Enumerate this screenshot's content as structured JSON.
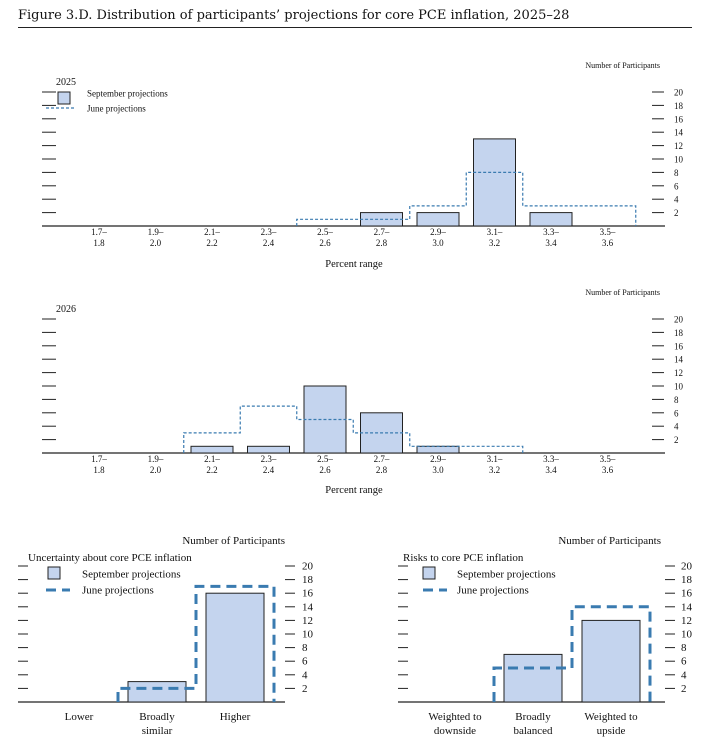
{
  "figure_title": "Figure 3.D. Distribution of participants’ projections for core PCE inflation, 2025–28",
  "colors": {
    "bar_fill": "#c4d4ee",
    "bar_stroke": "#222222",
    "june_line": "#3a7bb0"
  },
  "chart_data": [
    {
      "type": "bar",
      "title": "2025",
      "ylabel": "Number of Participants",
      "xlabel": "Percent range",
      "legend": [
        "September projections",
        "June projections"
      ],
      "y_ticks": [
        2,
        4,
        6,
        8,
        10,
        12,
        14,
        16,
        18,
        20
      ],
      "ylim": [
        0,
        20
      ],
      "categories": [
        [
          "1.7–",
          "1.8"
        ],
        [
          "1.9–",
          "2.0"
        ],
        [
          "2.1–",
          "2.2"
        ],
        [
          "2.3–",
          "2.4"
        ],
        [
          "2.5–",
          "2.6"
        ],
        [
          "2.7–",
          "2.8"
        ],
        [
          "2.9–",
          "3.0"
        ],
        [
          "3.1–",
          "3.2"
        ],
        [
          "3.3–",
          "3.4"
        ],
        [
          "3.5–",
          "3.6"
        ]
      ],
      "series": [
        {
          "name": "September projections",
          "values": [
            0,
            0,
            0,
            0,
            0,
            2,
            2,
            13,
            2,
            0
          ]
        },
        {
          "name": "June projections",
          "values": [
            0,
            0,
            0,
            0,
            1,
            1,
            3,
            8,
            3,
            3
          ]
        }
      ]
    },
    {
      "type": "bar",
      "title": "2026",
      "ylabel": "Number of Participants",
      "xlabel": "Percent range",
      "y_ticks": [
        2,
        4,
        6,
        8,
        10,
        12,
        14,
        16,
        18,
        20
      ],
      "ylim": [
        0,
        20
      ],
      "categories": [
        [
          "1.7–",
          "1.8"
        ],
        [
          "1.9–",
          "2.0"
        ],
        [
          "2.1–",
          "2.2"
        ],
        [
          "2.3–",
          "2.4"
        ],
        [
          "2.5–",
          "2.6"
        ],
        [
          "2.7–",
          "2.8"
        ],
        [
          "2.9–",
          "3.0"
        ],
        [
          "3.1–",
          "3.2"
        ],
        [
          "3.3–",
          "3.4"
        ],
        [
          "3.5–",
          "3.6"
        ]
      ],
      "series": [
        {
          "name": "September projections",
          "values": [
            0,
            0,
            1,
            1,
            10,
            6,
            1,
            0,
            0,
            0
          ]
        },
        {
          "name": "June projections",
          "values": [
            0,
            0,
            3,
            7,
            5,
            3,
            1,
            1,
            0,
            0
          ]
        }
      ]
    },
    {
      "type": "bar",
      "title": "Uncertainty about core PCE inflation",
      "ylabel": "Number of Participants",
      "legend": [
        "September projections",
        "June projections"
      ],
      "y_ticks": [
        2,
        4,
        6,
        8,
        10,
        12,
        14,
        16,
        18,
        20
      ],
      "ylim": [
        0,
        20
      ],
      "categories": [
        [
          "Lower"
        ],
        [
          "Broadly",
          "similar"
        ],
        [
          "Higher"
        ]
      ],
      "series": [
        {
          "name": "September projections",
          "values": [
            0,
            3,
            16
          ]
        },
        {
          "name": "June projections",
          "values": [
            0,
            2,
            17
          ]
        }
      ]
    },
    {
      "type": "bar",
      "title": "Risks to core PCE inflation",
      "ylabel": "Number of Participants",
      "legend": [
        "September projections",
        "June projections"
      ],
      "y_ticks": [
        2,
        4,
        6,
        8,
        10,
        12,
        14,
        16,
        18,
        20
      ],
      "ylim": [
        0,
        20
      ],
      "categories": [
        [
          "Weighted to",
          "downside"
        ],
        [
          "Broadly",
          "balanced"
        ],
        [
          "Weighted to",
          "upside"
        ]
      ],
      "series": [
        {
          "name": "September projections",
          "values": [
            0,
            7,
            12
          ]
        },
        {
          "name": "June projections",
          "values": [
            0,
            5,
            14
          ]
        }
      ]
    }
  ]
}
